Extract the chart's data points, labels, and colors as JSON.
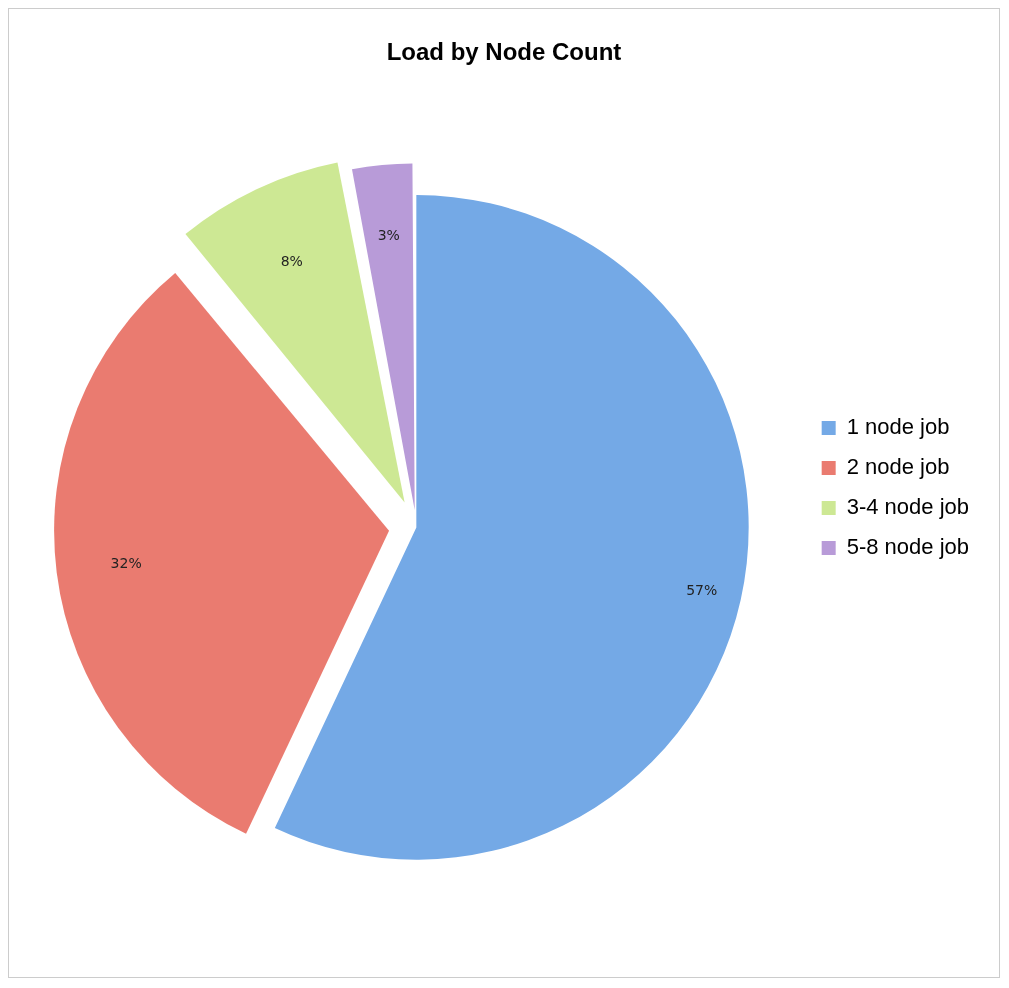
{
  "chart_data": {
    "type": "pie",
    "title": "Load by Node Count",
    "categories": [
      "1 node job",
      "2 node job",
      "3-4 node job",
      "5-8 node job"
    ],
    "values": [
      57,
      32,
      8,
      3
    ],
    "colors": [
      "#74a9e6",
      "#ea7b70",
      "#cde894",
      "#b89bd8"
    ],
    "value_labels": [
      "57%",
      "32%",
      "8%",
      "3%"
    ],
    "legend": "right"
  }
}
